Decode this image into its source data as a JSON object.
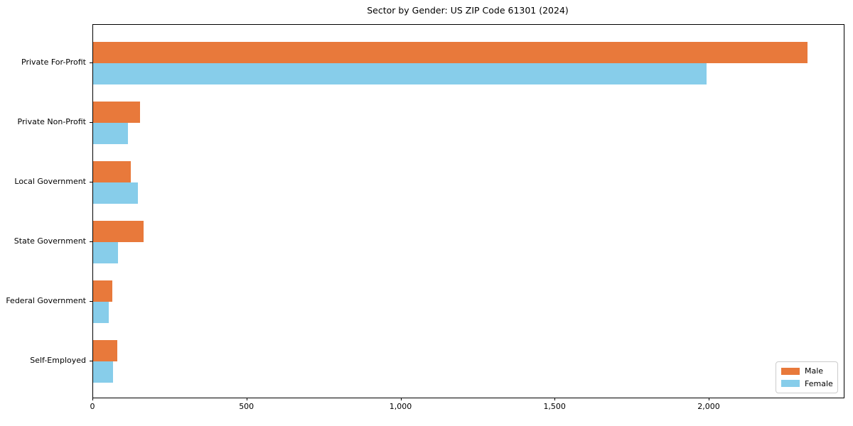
{
  "chart_data": {
    "type": "bar",
    "orientation": "horizontal",
    "title": "Sector by Gender: US ZIP Code 61301 (2024)",
    "categories": [
      "Private For-Profit",
      "Private Non-Profit",
      "Local Government",
      "State Government",
      "Federal Government",
      "Self-Employed"
    ],
    "series": [
      {
        "name": "Male",
        "color": "#E8793B",
        "values": [
          2318,
          152,
          122,
          164,
          62,
          78
        ]
      },
      {
        "name": "Female",
        "color": "#87CDEA",
        "values": [
          1990,
          113,
          145,
          81,
          51,
          65
        ]
      }
    ],
    "xlabel": "",
    "ylabel": "",
    "xlim": [
      0,
      2436
    ],
    "x_ticks": [
      {
        "value": 0,
        "label": "0"
      },
      {
        "value": 500,
        "label": "500"
      },
      {
        "value": 1000,
        "label": "1,000"
      },
      {
        "value": 1500,
        "label": "1,500"
      },
      {
        "value": 2000,
        "label": "2,000"
      }
    ],
    "grid": false,
    "legend_position": "lower right",
    "colors": {
      "axis": "#000000",
      "text": "#000000",
      "legend_border": "#cccccc",
      "background": "#ffffff"
    }
  }
}
